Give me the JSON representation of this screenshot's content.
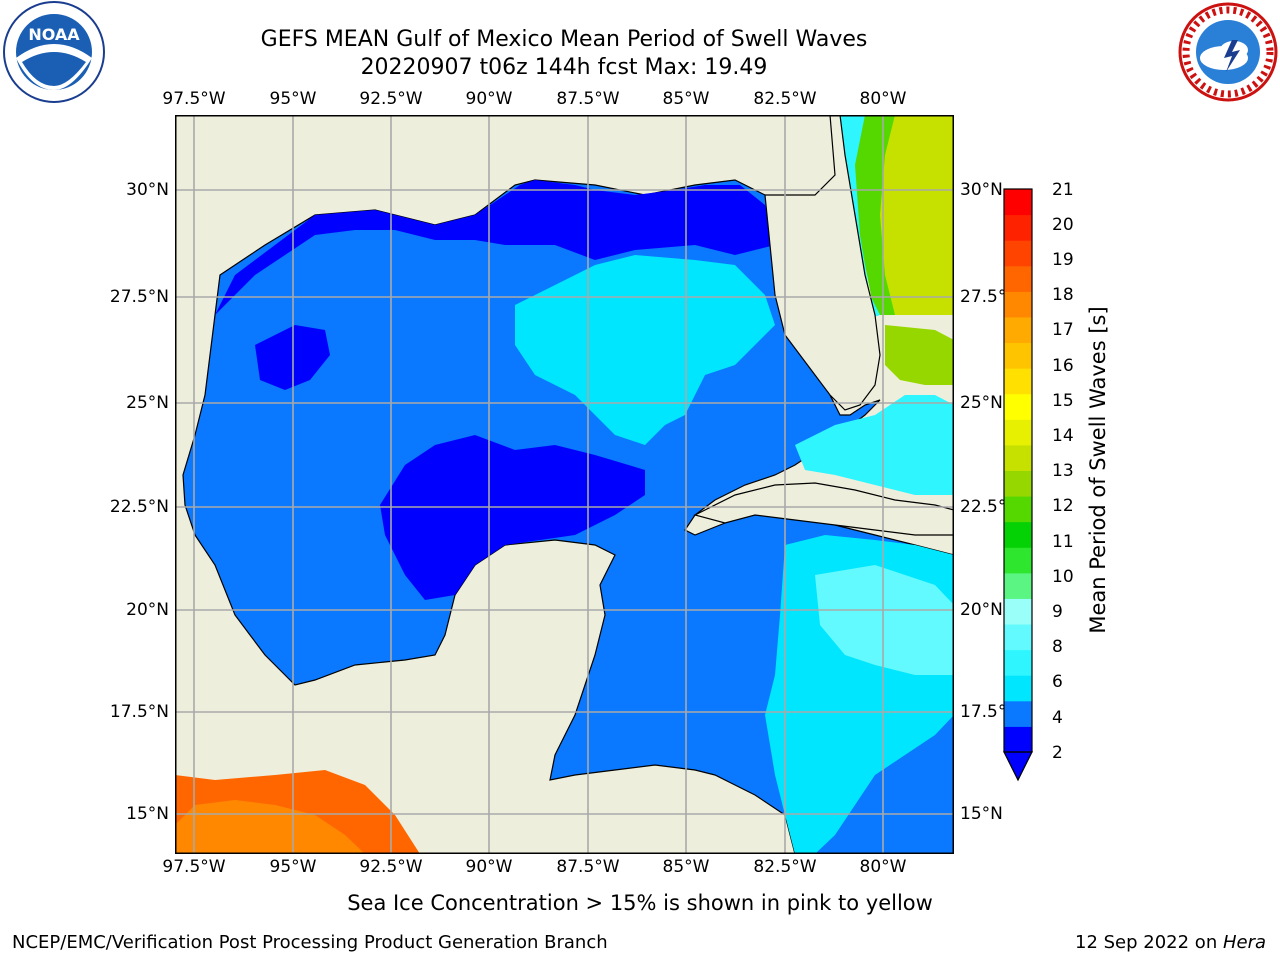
{
  "header": {
    "title_line1": "GEFS MEAN Gulf of Mexico Mean Period of Swell Waves",
    "title_line2": "20220907 t06z 144h fcst   Max: 19.49"
  },
  "map": {
    "lon_ticks": [
      "97.5°W",
      "95°W",
      "92.5°W",
      "90°W",
      "87.5°W",
      "85°W",
      "82.5°W",
      "80°W"
    ],
    "lat_ticks": [
      "30°N",
      "27.5°N",
      "25°N",
      "22.5°N",
      "20°N",
      "17.5°N",
      "15°N"
    ],
    "colors": {
      "land": "#eeeedc",
      "grid": "#a9a9a9",
      "coast": "#000000"
    }
  },
  "colorbar": {
    "label": "Mean Period of Swell Waves [s]",
    "ticks": [
      "21",
      "20",
      "19",
      "18",
      "17",
      "16",
      "15",
      "14",
      "13",
      "12",
      "11",
      "10",
      "9",
      "8",
      "6",
      "4",
      "2"
    ],
    "colors": [
      "#0000ff",
      "#0a78ff",
      "#00e6ff",
      "#2ff5ff",
      "#62fafe",
      "#99fff8",
      "#5af582",
      "#2ee62d",
      "#04d204",
      "#55d700",
      "#96d700",
      "#c6e100",
      "#e6f000",
      "#ffff00",
      "#ffe000",
      "#ffc400",
      "#ffaa00",
      "#ff8800",
      "#ff6600",
      "#ff4400",
      "#ff2200",
      "#ff0000"
    ]
  },
  "footer": {
    "sea_ice_note": "Sea Ice Concentration > 15% is shown in pink to yellow",
    "branch": "NCEP/EMC/Verification Post Processing Product Generation Branch",
    "date_prefix": "12 Sep 2022 on ",
    "machine": "Hera"
  },
  "logos": {
    "noaa_text": "NOAA",
    "nws_text": "NATIONAL WEATHER SERVICE"
  }
}
